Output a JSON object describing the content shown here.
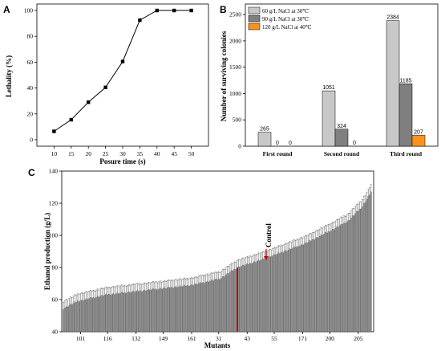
{
  "chart_data": [
    {
      "id": "A",
      "panel_label": "A",
      "type": "line",
      "ylabel": "Lethality (%)",
      "xlabel": "Posure time (s)",
      "x": [
        10,
        15,
        20,
        25,
        30,
        35,
        40,
        45,
        50
      ],
      "y": [
        6.5,
        15.5,
        29,
        40.5,
        60.5,
        92.5,
        100,
        100,
        100
      ],
      "xlim": [
        5,
        55
      ],
      "ylim": [
        -5,
        105
      ],
      "xticks": [
        "10",
        "15",
        "20",
        "25",
        "30",
        "35",
        "40",
        "45",
        "50"
      ],
      "yticks": [
        "0",
        "20",
        "40",
        "60",
        "80",
        "100"
      ],
      "marker": "square",
      "color": "#000000"
    },
    {
      "id": "B",
      "panel_label": "B",
      "type": "bar",
      "ylabel": "Number of surviving colonies",
      "categories": [
        "First round",
        "Second round",
        "Third round"
      ],
      "series": [
        {
          "name": "60 g/L NaCl at 30℃",
          "values": [
            265,
            1051,
            2384
          ],
          "labels": [
            "265",
            "1051",
            "2384"
          ],
          "color": "#c8c8c8"
        },
        {
          "name": "90 g/L NaCl at 30℃",
          "values": [
            0,
            324,
            1185
          ],
          "labels": [
            "0",
            "324",
            "1185"
          ],
          "color": "#7f7f7f"
        },
        {
          "name": "120 g/L NaCl at 40℃",
          "values": [
            0,
            0,
            207
          ],
          "labels": [
            "0",
            "0",
            "207"
          ],
          "color": "#f7931e"
        }
      ],
      "ylim": [
        0,
        2700
      ],
      "yticks": [
        "0",
        "500",
        "1000",
        "1500",
        "2000",
        "2500"
      ],
      "legend": "top-left"
    },
    {
      "id": "C",
      "panel_label": "C",
      "type": "bar",
      "ylabel": "Ethanol production (g/L)",
      "xlabel": "Mutants",
      "annotation": "Control",
      "annotation_color": "#c00000",
      "ylim": [
        40,
        140
      ],
      "yticks": [
        "40",
        "60",
        "80",
        "100",
        "120",
        "140"
      ],
      "xticks": [
        "101",
        "116",
        "132",
        "149",
        "161",
        "31",
        "43",
        "55",
        "171",
        "200",
        "205"
      ],
      "xtick_positions": [
        12,
        31,
        51,
        70,
        90,
        109,
        129,
        148,
        168,
        187,
        207
      ],
      "n_bars": 217,
      "control_index": 122,
      "anchors": [
        [
          0,
          54.5
        ],
        [
          10,
          59
        ],
        [
          30,
          63
        ],
        [
          60,
          66
        ],
        [
          90,
          69
        ],
        [
          110,
          73
        ],
        [
          122,
          80
        ],
        [
          140,
          85
        ],
        [
          170,
          95
        ],
        [
          190,
          104
        ],
        [
          200,
          109
        ],
        [
          210,
          118
        ],
        [
          216,
          127
        ]
      ],
      "error": 4.5,
      "bar_color": "#9a9a9a",
      "control_color": "#c00000"
    }
  ]
}
